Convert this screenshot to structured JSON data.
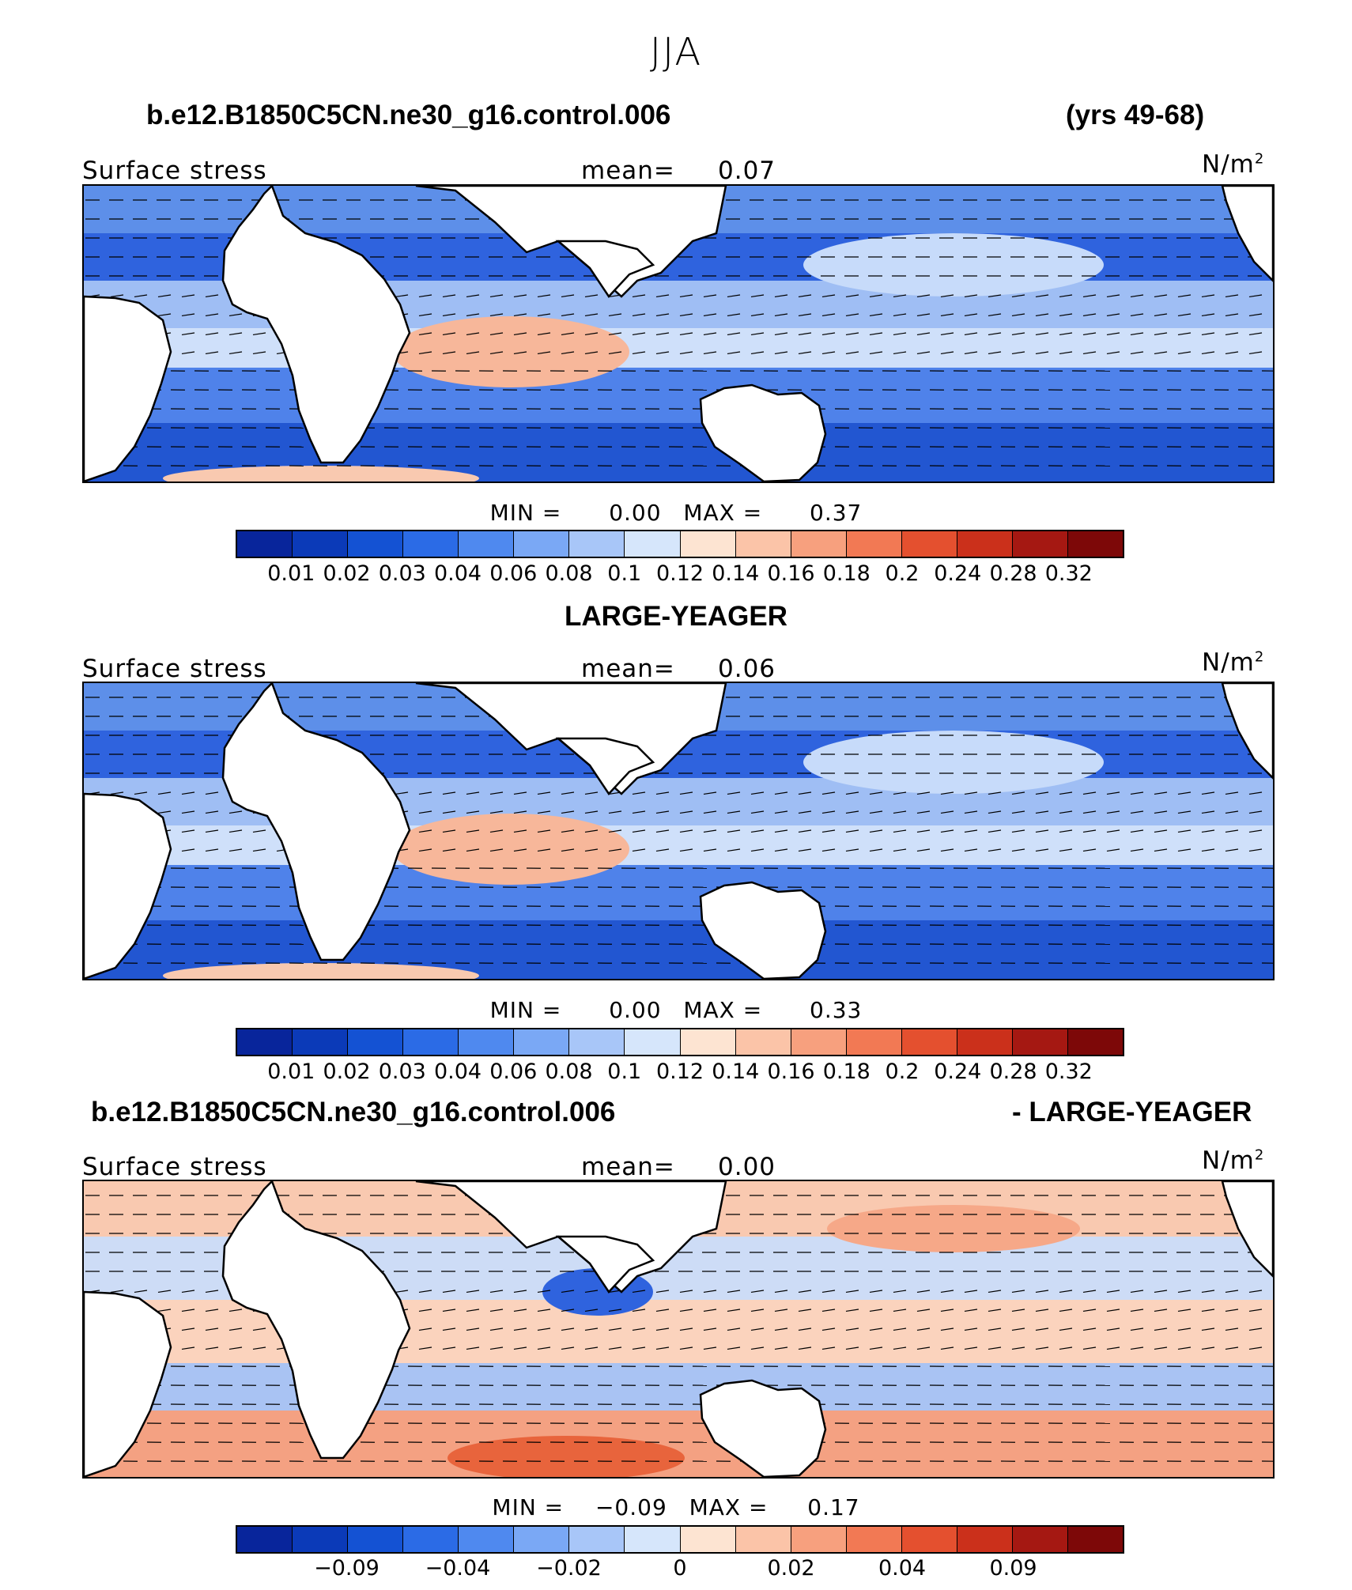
{
  "title": "JJA",
  "colorbar_colors": [
    "#08259b",
    "#0b3ab8",
    "#1452d3",
    "#2b6be6",
    "#4f89ef",
    "#7aa8f5",
    "#a8c6f8",
    "#d6e6fb",
    "#fde4d2",
    "#fbc4a8",
    "#f7a07e",
    "#f27954",
    "#e4502f",
    "#cb301b",
    "#a51812",
    "#7d0808"
  ],
  "panels": [
    {
      "header_left": "b.e12.B1850C5CN.ne30_g16.control.006",
      "header_right": "(yrs 49-68)",
      "field_label": "Surface stress",
      "mean_label": "mean=",
      "mean_value": "0.07",
      "units": "N/m",
      "units_sup": "2",
      "min_label": "MIN =",
      "min_value": "0.00",
      "max_label": "MAX =",
      "max_value": "0.37",
      "colorbar_ticks": [
        "0.01",
        "0.02",
        "0.03",
        "0.04",
        "0.06",
        "0.08",
        "0.1",
        "0.12",
        "0.14",
        "0.16",
        "0.18",
        "0.2",
        "0.24",
        "0.28",
        "0.32"
      ]
    },
    {
      "header_left": "LARGE-YEAGER",
      "header_right": "",
      "field_label": "Surface stress",
      "mean_label": "mean=",
      "mean_value": "0.06",
      "units": "N/m",
      "units_sup": "2",
      "min_label": "MIN =",
      "min_value": "0.00",
      "max_label": "MAX =",
      "max_value": "0.33",
      "colorbar_ticks": [
        "0.01",
        "0.02",
        "0.03",
        "0.04",
        "0.06",
        "0.08",
        "0.1",
        "0.12",
        "0.14",
        "0.16",
        "0.18",
        "0.2",
        "0.24",
        "0.28",
        "0.32"
      ]
    },
    {
      "header_left": "b.e12.B1850C5CN.ne30_g16.control.006",
      "header_right": "- LARGE-YEAGER",
      "field_label": "Surface stress",
      "mean_label": "mean=",
      "mean_value": "0.00",
      "units": "N/m",
      "units_sup": "2",
      "min_label": "MIN =",
      "min_value": "−0.09",
      "max_label": "MAX =",
      "max_value": "0.17",
      "colorbar_ticks": [
        "",
        "−0.09",
        "",
        "−0.04",
        "",
        "−0.02",
        "",
        "0",
        "",
        "0.02",
        "",
        "0.04",
        "",
        "0.09",
        ""
      ]
    }
  ]
}
